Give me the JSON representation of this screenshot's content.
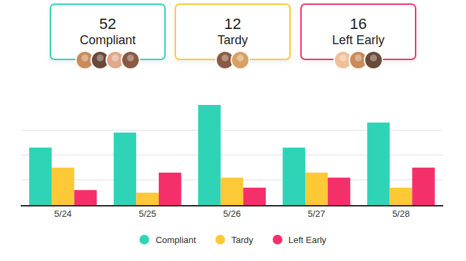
{
  "summary": [
    {
      "value": 52,
      "label": "Compliant"
    },
    {
      "value": 12,
      "label": "Tardy"
    },
    {
      "value": 16,
      "label": "Left Early"
    }
  ],
  "chart_data": {
    "type": "bar",
    "categories": [
      "5/24",
      "5/25",
      "5/26",
      "5/27",
      "5/28"
    ],
    "series": [
      {
        "name": "Compliant",
        "color": "#2fd4b7",
        "values": [
          2.3,
          2.9,
          4.0,
          2.3,
          3.3
        ]
      },
      {
        "name": "Tardy",
        "color": "#fdc936",
        "values": [
          1.5,
          0.5,
          1.1,
          1.3,
          0.7
        ]
      },
      {
        "name": "Left Early",
        "color": "#f4306a",
        "values": [
          0.6,
          1.3,
          0.7,
          1.1,
          1.5
        ]
      }
    ],
    "ylim": [
      0,
      4
    ],
    "yticks": [
      0,
      1,
      2,
      3,
      4
    ],
    "grid": true,
    "tick_labels": "x",
    "legend": "bottom"
  }
}
